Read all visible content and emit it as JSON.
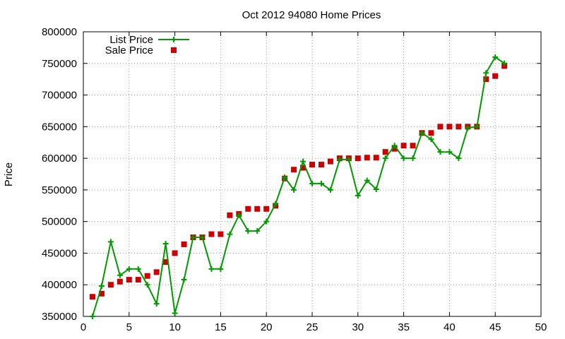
{
  "chart_data": {
    "type": "line",
    "title": "Oct 2012 94080 Home Prices",
    "xlabel": "",
    "ylabel": "Price",
    "xlim": [
      0,
      50
    ],
    "ylim": [
      350000,
      800000
    ],
    "x_ticks": [
      0,
      5,
      10,
      15,
      20,
      25,
      30,
      35,
      40,
      45,
      50
    ],
    "y_ticks": [
      350000,
      400000,
      450000,
      500000,
      550000,
      600000,
      650000,
      700000,
      750000,
      800000
    ],
    "grid": true,
    "legend_position": "top-left",
    "series": [
      {
        "name": "List Price",
        "style": "line+cross",
        "color": "#009900",
        "points": [
          [
            1,
            350000
          ],
          [
            2,
            398000
          ],
          [
            3,
            468000
          ],
          [
            4,
            415000
          ],
          [
            5,
            425000
          ],
          [
            6,
            425000
          ],
          [
            7,
            400000
          ],
          [
            8,
            370000
          ],
          [
            9,
            465000
          ],
          [
            10,
            355000
          ],
          [
            11,
            408000
          ],
          [
            12,
            475000
          ],
          [
            13,
            475000
          ],
          [
            14,
            425000
          ],
          [
            15,
            425000
          ],
          [
            16,
            480000
          ],
          [
            17,
            510000
          ],
          [
            18,
            485000
          ],
          [
            19,
            485000
          ],
          [
            20,
            500000
          ],
          [
            21,
            528000
          ],
          [
            22,
            570000
          ],
          [
            23,
            550000
          ],
          [
            24,
            595000
          ],
          [
            25,
            560000
          ],
          [
            26,
            560000
          ],
          [
            27,
            550000
          ],
          [
            28,
            598000
          ],
          [
            29,
            598000
          ],
          [
            30,
            541000
          ],
          [
            31,
            565000
          ],
          [
            32,
            551000
          ],
          [
            33,
            600000
          ],
          [
            34,
            620000
          ],
          [
            35,
            600000
          ],
          [
            36,
            600000
          ],
          [
            37,
            640000
          ],
          [
            38,
            630000
          ],
          [
            39,
            610000
          ],
          [
            40,
            610000
          ],
          [
            41,
            600000
          ],
          [
            42,
            648000
          ],
          [
            43,
            650000
          ],
          [
            44,
            735000
          ],
          [
            45,
            760000
          ],
          [
            46,
            750000
          ]
        ]
      },
      {
        "name": "Sale Price",
        "style": "square",
        "color": "#cc0000",
        "points": [
          [
            1,
            381000
          ],
          [
            2,
            386000
          ],
          [
            3,
            400000
          ],
          [
            4,
            405000
          ],
          [
            5,
            408000
          ],
          [
            6,
            408000
          ],
          [
            7,
            414000
          ],
          [
            8,
            420000
          ],
          [
            9,
            436000
          ],
          [
            10,
            450000
          ],
          [
            11,
            464000
          ],
          [
            12,
            475000
          ],
          [
            13,
            475000
          ],
          [
            14,
            480000
          ],
          [
            15,
            480000
          ],
          [
            16,
            510000
          ],
          [
            17,
            512000
          ],
          [
            18,
            520000
          ],
          [
            19,
            520000
          ],
          [
            20,
            520000
          ],
          [
            21,
            525000
          ],
          [
            22,
            568000
          ],
          [
            23,
            582000
          ],
          [
            24,
            585000
          ],
          [
            25,
            590000
          ],
          [
            26,
            590000
          ],
          [
            27,
            595000
          ],
          [
            28,
            600000
          ],
          [
            29,
            600000
          ],
          [
            30,
            600000
          ],
          [
            31,
            601000
          ],
          [
            32,
            601000
          ],
          [
            33,
            610000
          ],
          [
            34,
            615000
          ],
          [
            35,
            620000
          ],
          [
            36,
            620000
          ],
          [
            37,
            640000
          ],
          [
            38,
            640000
          ],
          [
            39,
            650000
          ],
          [
            40,
            650000
          ],
          [
            41,
            650000
          ],
          [
            42,
            650000
          ],
          [
            43,
            650000
          ],
          [
            44,
            725000
          ],
          [
            45,
            730000
          ],
          [
            46,
            746000
          ]
        ]
      }
    ]
  }
}
